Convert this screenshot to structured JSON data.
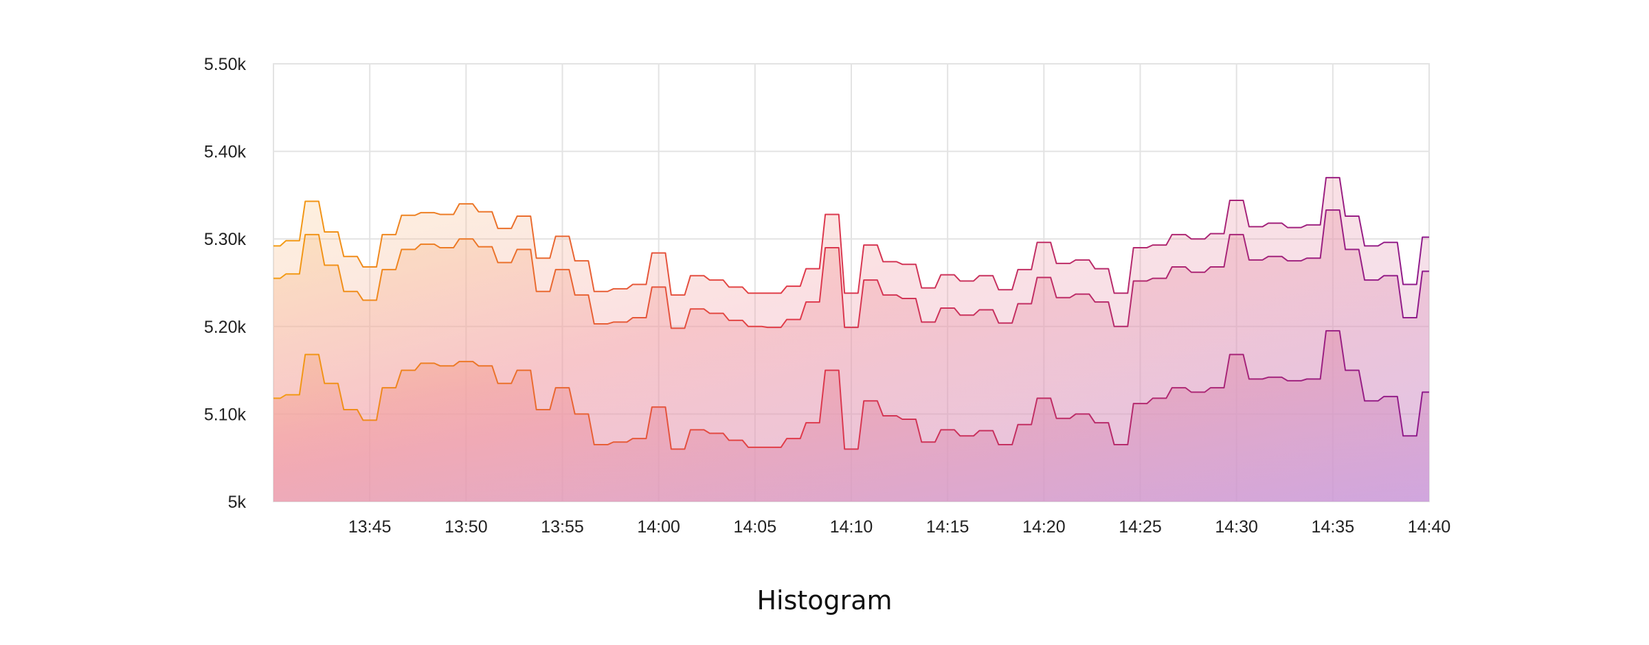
{
  "chart_data": {
    "type": "area",
    "title": "Histogram",
    "xlabel": "",
    "ylabel": "",
    "ylim": [
      5000,
      5500
    ],
    "y_ticks": [
      5000,
      5100,
      5200,
      5300,
      5400,
      5500
    ],
    "y_tick_labels": [
      "5k",
      "5.10k",
      "5.20k",
      "5.30k",
      "5.40k",
      "5.50k"
    ],
    "x_range": [
      "13:40",
      "14:40"
    ],
    "x_tick_labels": [
      "13:45",
      "13:50",
      "13:55",
      "14:00",
      "14:05",
      "14:10",
      "14:15",
      "14:20",
      "14:25",
      "14:30",
      "14:35",
      "14:40"
    ],
    "grid": true,
    "legend": "none",
    "colors": {
      "start": "#f39c12",
      "middle": "#e03a4a",
      "end": "#8e1a8c"
    },
    "x": [
      "13:40",
      "13:41",
      "13:42",
      "13:43",
      "13:44",
      "13:45",
      "13:46",
      "13:47",
      "13:48",
      "13:49",
      "13:50",
      "13:51",
      "13:52",
      "13:53",
      "13:54",
      "13:55",
      "13:56",
      "13:57",
      "13:58",
      "13:59",
      "14:00",
      "14:01",
      "14:02",
      "14:03",
      "14:04",
      "14:05",
      "14:06",
      "14:07",
      "14:08",
      "14:09",
      "14:10",
      "14:11",
      "14:12",
      "14:13",
      "14:14",
      "14:15",
      "14:16",
      "14:17",
      "14:18",
      "14:19",
      "14:20",
      "14:21",
      "14:22",
      "14:23",
      "14:24",
      "14:25",
      "14:26",
      "14:27",
      "14:28",
      "14:29",
      "14:30",
      "14:31",
      "14:32",
      "14:33",
      "14:34",
      "14:35",
      "14:36",
      "14:37",
      "14:38",
      "14:39",
      "14:40"
    ],
    "series": [
      {
        "values": [
          5118,
          5122,
          5168,
          5135,
          5105,
          5093,
          5130,
          5150,
          5158,
          5155,
          5160,
          5155,
          5135,
          5150,
          5105,
          5130,
          5100,
          5065,
          5068,
          5072,
          5108,
          5060,
          5082,
          5078,
          5070,
          5062,
          5062,
          5072,
          5090,
          5150,
          5060,
          5115,
          5098,
          5094,
          5068,
          5082,
          5075,
          5081,
          5065,
          5088,
          5118,
          5095,
          5100,
          5090,
          5065,
          5112,
          5118,
          5130,
          5125,
          5130,
          5168,
          5140,
          5142,
          5138,
          5140,
          5195,
          5150,
          5115,
          5120,
          5075,
          5125
        ]
      },
      {
        "values": [
          5255,
          5260,
          5305,
          5270,
          5240,
          5230,
          5265,
          5288,
          5294,
          5290,
          5300,
          5291,
          5273,
          5288,
          5240,
          5265,
          5236,
          5203,
          5205,
          5210,
          5245,
          5198,
          5220,
          5215,
          5207,
          5200,
          5199,
          5208,
          5228,
          5290,
          5199,
          5253,
          5236,
          5232,
          5205,
          5221,
          5213,
          5219,
          5204,
          5226,
          5256,
          5233,
          5237,
          5228,
          5200,
          5252,
          5255,
          5268,
          5262,
          5268,
          5305,
          5276,
          5280,
          5275,
          5278,
          5333,
          5288,
          5253,
          5258,
          5210,
          5263
        ]
      },
      {
        "values": [
          5292,
          5298,
          5343,
          5308,
          5280,
          5268,
          5305,
          5327,
          5330,
          5328,
          5340,
          5331,
          5312,
          5326,
          5278,
          5303,
          5275,
          5240,
          5243,
          5248,
          5284,
          5236,
          5258,
          5253,
          5245,
          5238,
          5238,
          5246,
          5266,
          5328,
          5238,
          5293,
          5274,
          5271,
          5244,
          5259,
          5252,
          5258,
          5242,
          5265,
          5296,
          5272,
          5276,
          5266,
          5238,
          5290,
          5293,
          5305,
          5300,
          5306,
          5344,
          5314,
          5318,
          5313,
          5316,
          5370,
          5326,
          5292,
          5296,
          5248,
          5302
        ]
      }
    ]
  }
}
